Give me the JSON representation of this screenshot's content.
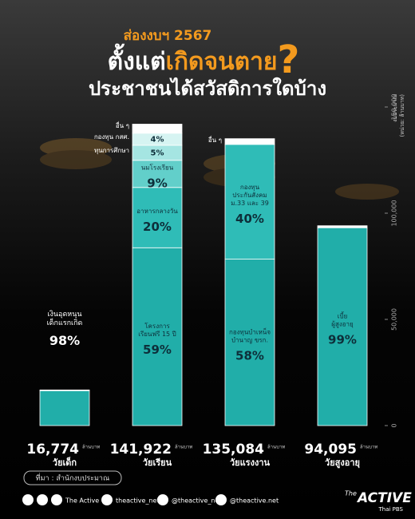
{
  "chart_data": {
    "type": "stacked-bar",
    "kicker": "ส่องงบฯ 2567",
    "title": [
      "ตั้งแต่",
      "เกิดจนตาย",
      "?"
    ],
    "subtitle": "ประชาชนได้สวัสดิการใดบ้าง",
    "y_label": [
      "งบประมาณ",
      "(หน่วย: ล้านบาท)"
    ],
    "unit_label": "ล้านบาท",
    "ylim": [
      0,
      150000
    ],
    "yticks": [
      0,
      {
        "value": 50000,
        "label": "50,000"
      },
      {
        "value": 100000,
        "label": "100,000"
      },
      {
        "value": 150000,
        "label": "150,000"
      }
    ],
    "segment_colors": [
      "#21aea9",
      "#2fbcb7",
      "#62cfca",
      "#a5e5e2",
      "#d6f4f2",
      "#ffffff"
    ],
    "groups": [
      {
        "name": "วัยเด็ก",
        "total": 16774,
        "total_label": "16,774",
        "segments": [
          {
            "name": [
              "เงินอุดหนุน",
              "เด็กแรกเกิด"
            ],
            "value": 98,
            "value_label": "98%"
          }
        ]
      },
      {
        "name": "วัยเรียน",
        "total": 141922,
        "total_label": "141,922",
        "segments": [
          {
            "name": [
              "โครงการ",
              "เรียนฟรี 15 ปี"
            ],
            "value": 59,
            "value_label": "59%"
          },
          {
            "name": [
              "อาหารกลางวัน"
            ],
            "value": 20,
            "value_label": "20%"
          },
          {
            "name": [
              "นมโรงเรียน"
            ],
            "value": 9,
            "value_label": "9%"
          },
          {
            "name": [
              "ทุนการศึกษา"
            ],
            "value": 5,
            "value_label": "5%"
          },
          {
            "name": [
              "กองทุน กสศ."
            ],
            "value": 4,
            "value_label": "4%"
          },
          {
            "name": [
              "อื่น ๆ"
            ]
          }
        ]
      },
      {
        "name": "วัยแรงงาน",
        "total": 135084,
        "total_label": "135,084",
        "segments": [
          {
            "name": [
              "กองทุนบำเหน็จ",
              "บำนาญ ขรก."
            ],
            "value": 58,
            "value_label": "58%"
          },
          {
            "name": [
              "กองทุน",
              "ประกันสังคม",
              "ม.33 และ 39"
            ],
            "value": 40,
            "value_label": "40%"
          },
          {
            "name": [
              "อื่น ๆ"
            ]
          }
        ]
      },
      {
        "name": "วัยสูงอายุ",
        "total": 94095,
        "total_label": "94,095",
        "segments": [
          {
            "name": [
              "เบี้ย",
              "ผู้สูงอายุ"
            ],
            "value": 99,
            "value_label": "99%"
          }
        ]
      }
    ],
    "source": "ที่มา : สำนักงบประมาณ",
    "socials": [
      "The Active",
      "theactive_net",
      "@theactive_net",
      "@theactive.net"
    ],
    "logo": [
      "The",
      "ACTIVE",
      "Thai PBS"
    ]
  }
}
